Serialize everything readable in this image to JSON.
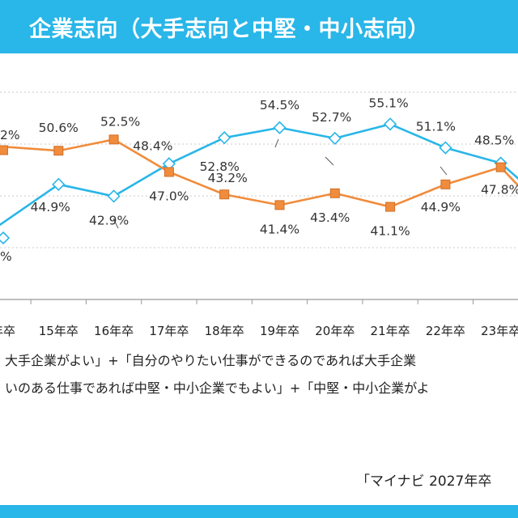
{
  "header": {
    "title": "企業志向（大手志向と中堅・中小志向）"
  },
  "notes": {
    "line1": "大手企業がよい」+「自分のやりたい仕事ができるのであれば大手企業",
    "line2": "いのある仕事であれば中堅・中小企業でもよい」+「中堅・中小企業がよ"
  },
  "source": "「マイナビ 2027年卒",
  "colors": {
    "blue": "#29b6e8",
    "orange": "#f08c3c",
    "grid": "#c8c8c8"
  },
  "chart_data": {
    "type": "line",
    "categories": [
      "年卒",
      "15年卒",
      "16年卒",
      "17年卒",
      "18年卒",
      "19年卒",
      "20年卒",
      "21年卒",
      "22年卒",
      "23年卒",
      ""
    ],
    "series": [
      {
        "color": "#29b6e8",
        "marker": "diamond",
        "values": [
          null,
          44.9,
          42.9,
          48.4,
          52.8,
          54.5,
          52.7,
          55.1,
          51.1,
          48.5,
          null
        ],
        "labels": [
          "%",
          "44.9%",
          "42.9%",
          "48.4%",
          "52.8%",
          "54.5%",
          "52.7%",
          "55.1%",
          "51.1%",
          "48.5%",
          ""
        ]
      },
      {
        "color": "#f08c3c",
        "marker": "square",
        "values": [
          null,
          50.6,
          52.5,
          47.0,
          43.2,
          41.4,
          43.4,
          41.1,
          44.9,
          47.8,
          null
        ],
        "labels": [
          "2%",
          "50.6%",
          "52.5%",
          "47.0%",
          "43.2%",
          "41.4%",
          "43.4%",
          "41.1%",
          "44.9%",
          "47.8%",
          ""
        ]
      }
    ],
    "grid": true
  }
}
